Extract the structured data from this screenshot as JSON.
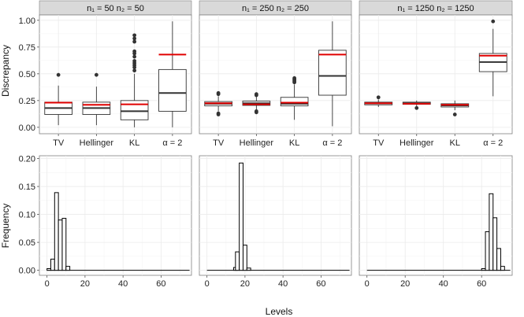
{
  "chart_data": {
    "type": "boxplot+histogram facet grid",
    "colors": {
      "grid": "#ebebeb",
      "strip": "#d9d9d9",
      "red_line": "#e00000",
      "median": "#333333",
      "box_stroke": "#333333",
      "bar_stroke": "#000000"
    },
    "top_row": {
      "ylabel": "Discrepancy",
      "ylim": [
        0,
        1
      ],
      "yticks": [
        0.0,
        0.25,
        0.5,
        0.75,
        1.0
      ],
      "ytick_labels": [
        "0.00",
        "0.25",
        "0.50",
        "0.75",
        "1.00"
      ],
      "categories": [
        "TV",
        "Hellinger",
        "KL",
        "α = 2"
      ],
      "panels": [
        {
          "strip": "n₁ = 50   n₂ = 50",
          "boxes": [
            {
              "category": "TV",
              "q1": 0.12,
              "median": 0.18,
              "q3": 0.235,
              "whisker_low": 0.02,
              "whisker_high": 0.39,
              "outliers": [
                0.49
              ],
              "red": 0.23
            },
            {
              "category": "Hellinger",
              "q1": 0.12,
              "median": 0.18,
              "q3": 0.235,
              "whisker_low": 0.02,
              "whisker_high": 0.38,
              "outliers": [
                0.49
              ],
              "red": 0.21
            },
            {
              "category": "KL",
              "q1": 0.07,
              "median": 0.15,
              "q3": 0.25,
              "whisker_low": 0.0,
              "whisker_high": 0.5,
              "outliers": [
                0.53,
                0.56,
                0.58,
                0.6,
                0.62,
                0.66,
                0.69,
                0.71,
                0.8,
                0.83,
                0.86
              ],
              "red": 0.215
            },
            {
              "category": "α = 2",
              "q1": 0.15,
              "median": 0.32,
              "q3": 0.54,
              "whisker_low": 0.0,
              "whisker_high": 0.99,
              "outliers": [],
              "red": 0.68
            }
          ]
        },
        {
          "strip": "n₁ = 250   n₂ = 250",
          "boxes": [
            {
              "category": "TV",
              "q1": 0.2,
              "median": 0.22,
              "q3": 0.24,
              "whisker_low": 0.15,
              "whisker_high": 0.29,
              "outliers": [
                0.12,
                0.13,
                0.31,
                0.32
              ],
              "red": 0.225
            },
            {
              "category": "Hellinger",
              "q1": 0.205,
              "median": 0.225,
              "q3": 0.245,
              "whisker_low": 0.16,
              "whisker_high": 0.29,
              "outliers": [
                0.14,
                0.15,
                0.3,
                0.31
              ],
              "red": 0.215
            },
            {
              "category": "KL",
              "q1": 0.2,
              "median": 0.22,
              "q3": 0.28,
              "whisker_low": 0.07,
              "whisker_high": 0.4,
              "outliers": [
                0.42,
                0.43,
                0.44,
                0.45,
                0.46
              ],
              "red": 0.23
            },
            {
              "category": "α = 2",
              "q1": 0.3,
              "median": 0.48,
              "q3": 0.72,
              "whisker_low": 0.01,
              "whisker_high": 0.99,
              "outliers": [],
              "red": 0.68
            }
          ]
        },
        {
          "strip": "n₁ = 1250   n₂ = 1250",
          "boxes": [
            {
              "category": "TV",
              "q1": 0.21,
              "median": 0.225,
              "q3": 0.235,
              "whisker_low": 0.19,
              "whisker_high": 0.26,
              "outliers": [
                0.28
              ],
              "red": 0.225
            },
            {
              "category": "Hellinger",
              "q1": 0.215,
              "median": 0.225,
              "q3": 0.235,
              "whisker_low": 0.195,
              "whisker_high": 0.25,
              "outliers": [
                0.18
              ],
              "red": 0.22
            },
            {
              "category": "KL",
              "q1": 0.19,
              "median": 0.205,
              "q3": 0.22,
              "whisker_low": 0.16,
              "whisker_high": 0.25,
              "outliers": [
                0.12
              ],
              "red": 0.21
            },
            {
              "category": "α = 2",
              "q1": 0.52,
              "median": 0.61,
              "q3": 0.69,
              "whisker_low": 0.29,
              "whisker_high": 0.92,
              "outliers": [
                0.99
              ],
              "red": 0.67
            }
          ]
        }
      ]
    },
    "bottom_row": {
      "xlabel": "Levels",
      "ylabel": "Frequency",
      "xlim": [
        -4,
        76
      ],
      "xticks": [
        0,
        20,
        40,
        60
      ],
      "ylim": [
        0,
        0.2
      ],
      "yticks": [
        0.0,
        0.05,
        0.1,
        0.15,
        0.2
      ],
      "ytick_labels": [
        "0.00",
        "0.05",
        "0.10",
        "0.15",
        "0.20"
      ],
      "baseline_range": [
        0,
        75
      ],
      "panels": [
        {
          "bins": [
            [
              0,
              2,
              0.003
            ],
            [
              2,
              4,
              0.02
            ],
            [
              4,
              6,
              0.139
            ],
            [
              6,
              8,
              0.09
            ],
            [
              8,
              10,
              0.093
            ],
            [
              10,
              12,
              0.007
            ]
          ]
        },
        {
          "bins": [
            [
              14,
              16,
              0.005
            ],
            [
              15,
              17,
              0.033
            ],
            [
              17,
              19,
              0.192
            ],
            [
              19,
              21,
              0.045
            ],
            [
              21,
              23,
              0.004
            ]
          ]
        },
        {
          "bins": [
            [
              60,
              62,
              0.003
            ],
            [
              62,
              64,
              0.069
            ],
            [
              64,
              66,
              0.137
            ],
            [
              66,
              68,
              0.094
            ],
            [
              68,
              70,
              0.039
            ],
            [
              70,
              72,
              0.007
            ]
          ]
        }
      ]
    }
  }
}
